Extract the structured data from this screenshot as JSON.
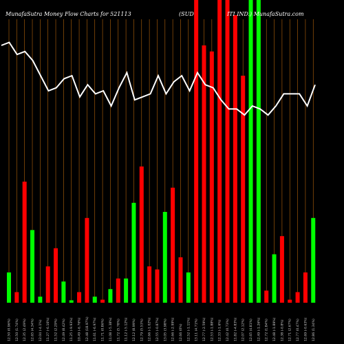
{
  "header": {
    "brand_left": "MunafaSutra  Money Flow  Charts for 521113",
    "company_left": "(SUD",
    "company_right": "ITI IND.) MunafaSutra.com"
  },
  "colors": {
    "background": "#000000",
    "grid": "#b8660b",
    "up_bar": "#00ff00",
    "down_bar": "#ff0000",
    "line": "#ffffff"
  },
  "chart_data": {
    "type": "bar",
    "title": "MunafaSutra  Money Flow  Charts for 521113 (SUDITI IND.) MunafaSutra.com",
    "grid": true,
    "bar_ylim": [
      0,
      100
    ],
    "line_ylim": [
      0,
      100
    ],
    "bars": [
      {
        "color": "green",
        "value": 10
      },
      {
        "color": "red",
        "value": 3.5
      },
      {
        "color": "red",
        "value": 40
      },
      {
        "color": "green",
        "value": 24
      },
      {
        "color": "green",
        "value": 2
      },
      {
        "color": "red",
        "value": 12
      },
      {
        "color": "red",
        "value": 18
      },
      {
        "color": "green",
        "value": 7
      },
      {
        "color": "green",
        "value": 0.8
      },
      {
        "color": "red",
        "value": 3.5
      },
      {
        "color": "red",
        "value": 28
      },
      {
        "color": "green",
        "value": 2
      },
      {
        "color": "red",
        "value": 1
      },
      {
        "color": "green",
        "value": 4.5
      },
      {
        "color": "red",
        "value": 8
      },
      {
        "color": "green",
        "value": 8
      },
      {
        "color": "green",
        "value": 33
      },
      {
        "color": "red",
        "value": 45
      },
      {
        "color": "red",
        "value": 12
      },
      {
        "color": "red",
        "value": 11
      },
      {
        "color": "green",
        "value": 30
      },
      {
        "color": "red",
        "value": 38
      },
      {
        "color": "red",
        "value": 15
      },
      {
        "color": "green",
        "value": 10
      },
      {
        "color": "red",
        "value": 100
      },
      {
        "color": "red",
        "value": 85
      },
      {
        "color": "red",
        "value": 83
      },
      {
        "color": "red",
        "value": 100
      },
      {
        "color": "red",
        "value": 100
      },
      {
        "color": "red",
        "value": 95
      },
      {
        "color": "red",
        "value": 75
      },
      {
        "color": "green",
        "value": 100
      },
      {
        "color": "green",
        "value": 100
      },
      {
        "color": "red",
        "value": 4
      },
      {
        "color": "green",
        "value": 16
      },
      {
        "color": "red",
        "value": 22
      },
      {
        "color": "red",
        "value": 1
      },
      {
        "color": "red",
        "value": 3.5
      },
      {
        "color": "red",
        "value": 10
      },
      {
        "color": "green",
        "value": 28
      }
    ],
    "line_values": [
      85,
      86,
      82,
      83,
      80,
      75,
      70,
      71,
      74,
      75,
      68,
      72,
      69,
      70,
      65,
      71,
      76,
      67,
      68,
      69,
      75,
      69,
      73,
      75,
      70,
      76,
      72,
      71,
      67,
      64,
      64,
      62,
      65,
      64,
      62,
      65,
      69,
      69,
      69,
      65,
      72
    ],
    "x_labels": [
      "12.50 (0.96%)",
      "12.50 (1.74%)",
      "12.35 (2.49%)",
      "12.65 (4.34%)",
      "12.04 (-4.1%)",
      "11.27 (-6.16%)",
      "11.52 (2.29%)",
      "12.49 (8.42%)",
      "11.25 (-9.93%)",
      "10.49 (-6.76%)",
      "12.48 (18.97%)",
      "11.61 (-6.97%)",
      "11.71 (0.86%)",
      "11.08 (-5.38%)",
      "11.72 (5.78%)",
      "11.12 (-5.12%)",
      "12.12 (8.99%)",
      "12.79 (5.53%)",
      "12.66 (-1.02%)",
      "12.55 (-0.87%)",
      "13.05 (3.98%)",
      "12.66 (-2.99%)",
      "12.66 (0%)",
      "12.52 (-1.11%)",
      "13.11 (4.71%)",
      "12.77 (-2.59%)",
      "12.53 (-1.88%)",
      "12.33 (-1.6%)",
      "12.42 (0.73%)",
      "11.82 (-4.83%)",
      "12.07 (2.12%)",
      "12.65 (4.81%)",
      "12.49 (-1.26%)",
      "12.72 (1.84%)",
      "12.48 (-1.89%)",
      "12.38 (-0.8%)",
      "12.71 (2.67%)",
      "12.77 (0.47%)",
      "12.69 (-0.63%)",
      "12.86 (1.34%)"
    ]
  }
}
